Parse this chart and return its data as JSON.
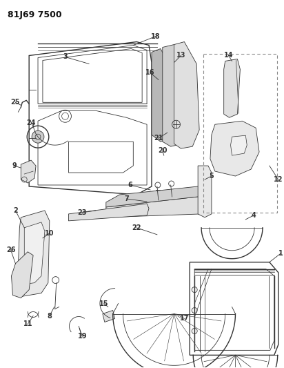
{
  "title_code": "81J69 7500",
  "bg_color": "#ffffff",
  "line_color": "#333333",
  "fig_width": 4.12,
  "fig_height": 5.33,
  "dpi": 100
}
